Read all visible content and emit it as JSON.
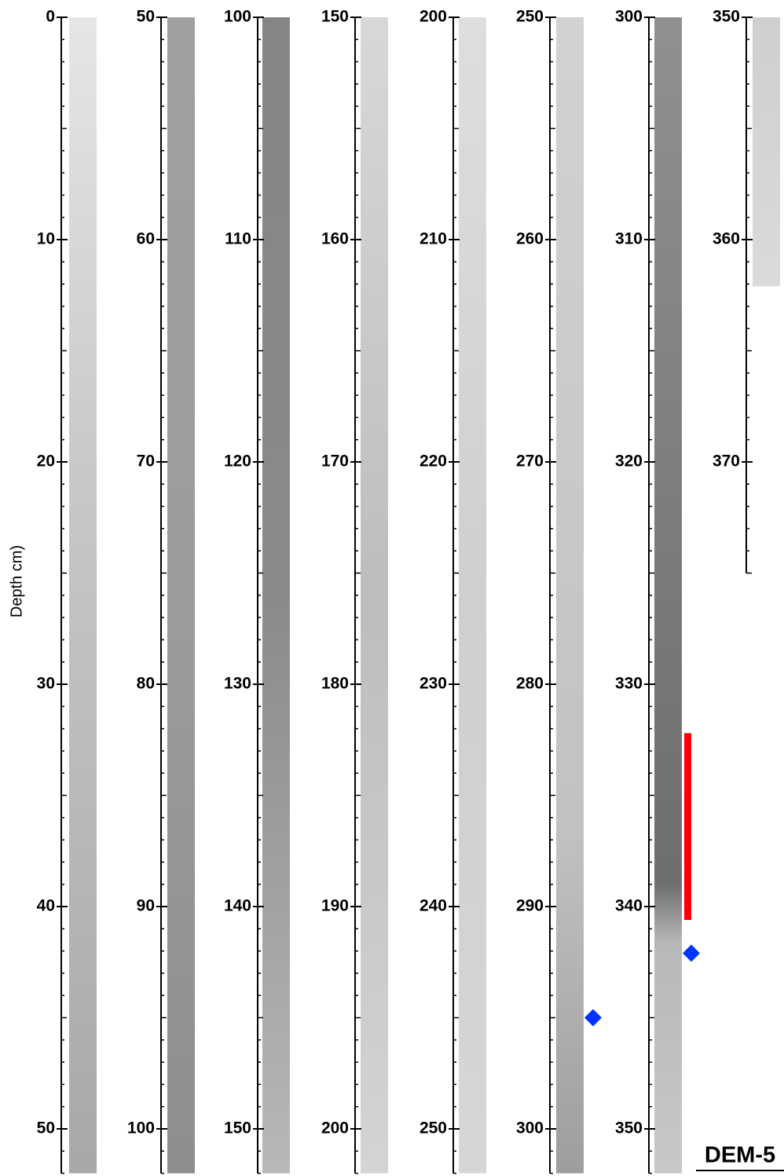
{
  "y_axis_label": "Depth cm)",
  "core_name": "DEM-5",
  "interval_color": "#ff0000",
  "marker_color": "#0033ff",
  "columns": [
    {
      "ylim": [
        0,
        52
      ],
      "yticks": [
        0,
        10,
        20,
        30,
        40,
        50
      ],
      "core": [
        0,
        52
      ]
    },
    {
      "ylim": [
        50,
        102
      ],
      "yticks": [
        50,
        60,
        70,
        80,
        90,
        100
      ],
      "core": [
        50,
        102
      ]
    },
    {
      "ylim": [
        100,
        152
      ],
      "yticks": [
        100,
        110,
        120,
        130,
        140,
        150
      ],
      "core": [
        100,
        152
      ]
    },
    {
      "ylim": [
        150,
        202
      ],
      "yticks": [
        150,
        160,
        170,
        180,
        190,
        200
      ],
      "core": [
        150,
        202
      ]
    },
    {
      "ylim": [
        200,
        252
      ],
      "yticks": [
        200,
        210,
        220,
        230,
        240,
        250
      ],
      "core": [
        200,
        252
      ]
    },
    {
      "ylim": [
        250,
        302
      ],
      "yticks": [
        250,
        260,
        270,
        280,
        290,
        300
      ],
      "core": [
        250,
        302
      ],
      "markers": [
        295
      ]
    },
    {
      "ylim": [
        300,
        352
      ],
      "yticks": [
        300,
        310,
        320,
        330,
        340,
        350
      ],
      "core": [
        300,
        352
      ],
      "interval": [
        332.2,
        340.6
      ],
      "markers": [
        342.1
      ]
    },
    {
      "ylim": [
        350,
        375
      ],
      "yticks": [
        350,
        360,
        370
      ],
      "core": [
        350,
        362.1
      ]
    }
  ]
}
